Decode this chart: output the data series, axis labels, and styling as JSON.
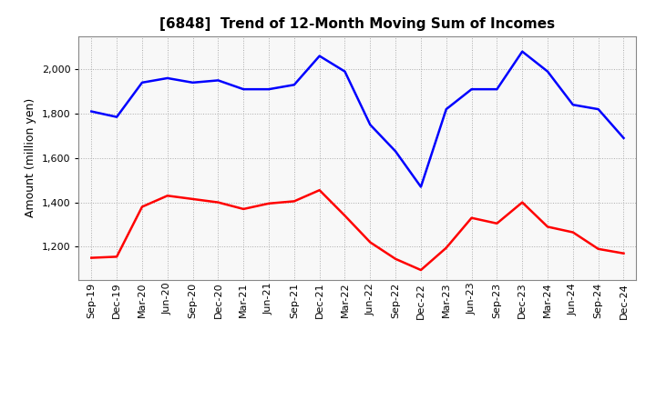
{
  "title": "[6848]  Trend of 12-Month Moving Sum of Incomes",
  "ylabel": "Amount (million yen)",
  "background_color": "#ffffff",
  "plot_bg_color": "#f8f8f8",
  "grid_color": "#aaaaaa",
  "labels": [
    "Sep-19",
    "Dec-19",
    "Mar-20",
    "Jun-20",
    "Sep-20",
    "Dec-20",
    "Mar-21",
    "Jun-21",
    "Sep-21",
    "Dec-21",
    "Mar-22",
    "Jun-22",
    "Sep-22",
    "Dec-22",
    "Mar-23",
    "Jun-23",
    "Sep-23",
    "Dec-23",
    "Mar-24",
    "Jun-24",
    "Sep-24",
    "Dec-24"
  ],
  "ordinary_income": [
    1810,
    1785,
    1940,
    1960,
    1940,
    1950,
    1910,
    1910,
    1930,
    2060,
    1990,
    1750,
    1630,
    1470,
    1820,
    1910,
    1910,
    2080,
    1990,
    1840,
    1820,
    1690
  ],
  "net_income": [
    1150,
    1155,
    1380,
    1430,
    1415,
    1400,
    1370,
    1395,
    1405,
    1455,
    1340,
    1220,
    1145,
    1095,
    1195,
    1330,
    1305,
    1400,
    1290,
    1265,
    1190,
    1170
  ],
  "ordinary_color": "#0000ff",
  "net_color": "#ff0000",
  "ylim_min": 1050,
  "ylim_max": 2150,
  "yticks": [
    1200,
    1400,
    1600,
    1800,
    2000
  ],
  "line_width": 1.8,
  "title_fontsize": 11,
  "tick_fontsize": 8,
  "ylabel_fontsize": 9,
  "legend_fontsize": 9
}
